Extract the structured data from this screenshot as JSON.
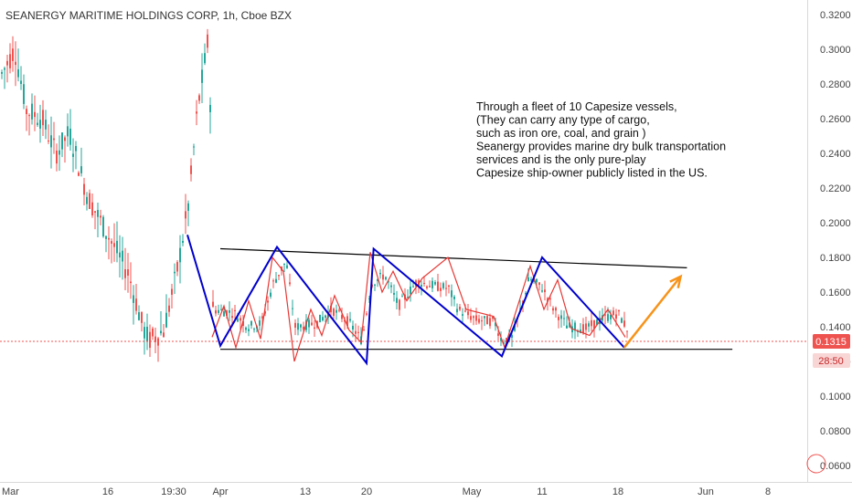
{
  "header": {
    "title": "SEANERGY MARITIME HOLDINGS CORP, 1h, Cboe BZX"
  },
  "chart_data": {
    "type": "line",
    "title": "SEANERGY MARITIME HOLDINGS CORP, 1h, Cboe BZX",
    "xlabel": "",
    "ylabel": "",
    "ylim": [
      0.055,
      0.33
    ],
    "grid": false,
    "y_ticks": [
      "0.3200",
      "0.3000",
      "0.2800",
      "0.2600",
      "0.2400",
      "0.2200",
      "0.2000",
      "0.1800",
      "0.1600",
      "0.1400",
      "0.1200",
      "0.1000",
      "0.0800",
      "0.0600"
    ],
    "x_ticks": [
      "Mar",
      "16",
      "19:30",
      "Apr",
      "13",
      "20",
      "May",
      "11",
      "18",
      "Jun",
      "8"
    ],
    "last_price": "0.1315",
    "countdown": "28:50",
    "colors": {
      "up": "#26a69a",
      "down": "#ef5350",
      "pattern": "#0000cc",
      "zigzag": "#e53935",
      "projection": "#f7931a",
      "trend": "#000000",
      "price_line": "#ef5350"
    },
    "pattern_points": [
      {
        "x": "Mar 31",
        "y": 0.193
      },
      {
        "x": "Apr 1",
        "y": 0.129
      },
      {
        "x": "Apr 9",
        "y": 0.186
      },
      {
        "x": "Apr 20",
        "y": 0.119
      },
      {
        "x": "Apr 21",
        "y": 0.185
      },
      {
        "x": "May 7",
        "y": 0.123
      },
      {
        "x": "May 11",
        "y": 0.18
      },
      {
        "x": "May 19",
        "y": 0.128
      }
    ],
    "projection": [
      {
        "x": "May 19",
        "y": 0.128
      },
      {
        "x": "May 28",
        "y": 0.169
      }
    ],
    "resistance_line": [
      {
        "x": "Apr 1",
        "y": 0.185
      },
      {
        "x": "May 29",
        "y": 0.174
      }
    ],
    "support_line": [
      {
        "x": "Apr 1",
        "y": 0.127
      },
      {
        "x": "Jun 4",
        "y": 0.127
      }
    ],
    "annotation": [
      "Through a fleet of 10 Capesize vessels,",
      "(They can carry any type of cargo,",
      "such as iron ore, coal, and grain )",
      "Seanergy provides marine dry bulk transportation",
      "services and is the only pure-play",
      "Capesize ship-owner publicly listed in the US."
    ]
  }
}
